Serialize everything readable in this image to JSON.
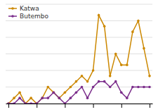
{
  "chart_data": {
    "type": "line",
    "x": [
      0,
      1,
      2,
      3,
      4,
      5,
      6,
      7,
      8,
      9,
      10,
      11,
      12,
      13,
      14,
      15,
      16,
      17,
      18,
      19,
      20,
      21,
      22,
      23,
      24,
      25
    ],
    "series": [
      {
        "name": "Katwa",
        "color": "#CC8800",
        "marker": "circle",
        "values": [
          0,
          1,
          2,
          0,
          1,
          0,
          1,
          3,
          2,
          1,
          2,
          3,
          4,
          5,
          4,
          6,
          16,
          14,
          5,
          9,
          7,
          7,
          13,
          15,
          10,
          5
        ]
      },
      {
        "name": "Butembo",
        "color": "#7B2D8B",
        "marker": "circle",
        "values": [
          0,
          0,
          1,
          0,
          0,
          0,
          1,
          1,
          2,
          1,
          0,
          1,
          2,
          3,
          1,
          3,
          4,
          4,
          3,
          4,
          2,
          1,
          3,
          3,
          3,
          3
        ]
      }
    ],
    "xlim": [
      -0.5,
      25.5
    ],
    "xticks": [
      0,
      5,
      10,
      15,
      20,
      25
    ],
    "ylim": [
      0,
      18
    ],
    "yticks": [
      0,
      3,
      6,
      9,
      12,
      15,
      18
    ],
    "grid": true,
    "legend": "upper left",
    "tick_labels": false
  }
}
